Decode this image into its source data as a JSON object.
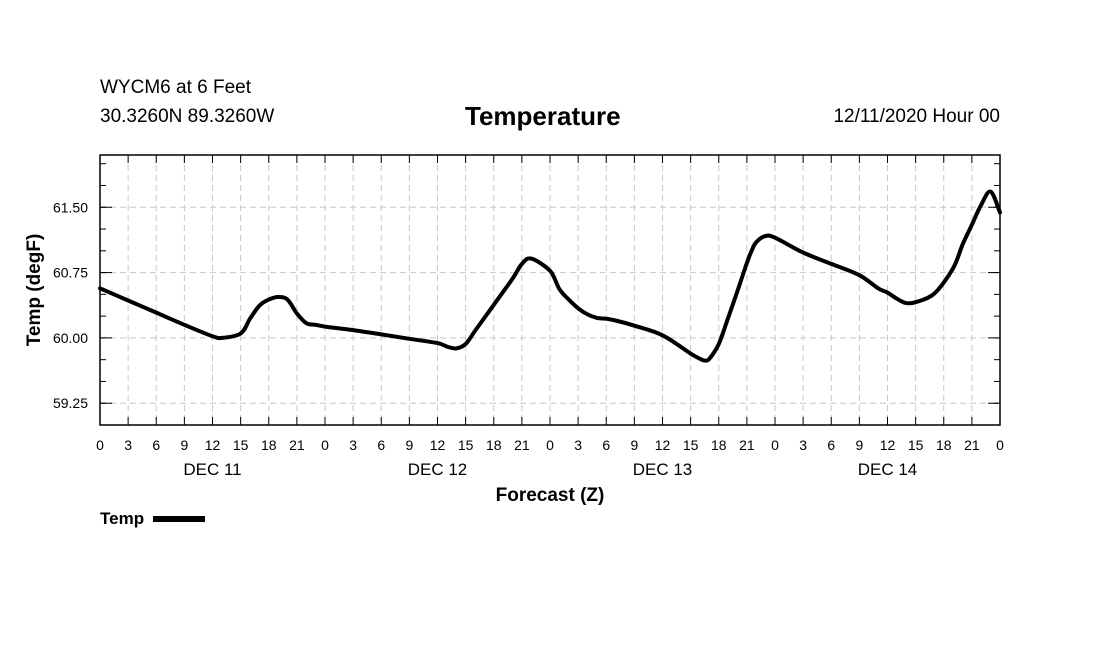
{
  "header": {
    "station": "WYCM6 at 6 Feet",
    "coordinates": "30.3260N 89.3260W",
    "stamp": "12/11/2020 Hour 00"
  },
  "chart_data": {
    "type": "line",
    "title": "Temperature",
    "xlabel": "Forecast (Z)",
    "ylabel": "Temp (degF)",
    "xlim": [
      0,
      96
    ],
    "ylim": [
      59.0,
      62.1
    ],
    "grid": true,
    "x_tick_step_hours": 3,
    "x_tick_labels": [
      "0",
      "3",
      "6",
      "9",
      "12",
      "15",
      "18",
      "21",
      "0",
      "3",
      "6",
      "9",
      "12",
      "15",
      "18",
      "21",
      "0",
      "3",
      "6",
      "9",
      "12",
      "15",
      "18",
      "21",
      "0",
      "3",
      "6",
      "9",
      "12",
      "15",
      "18",
      "21",
      "0"
    ],
    "day_labels": [
      {
        "label": "DEC 11",
        "hour": 12
      },
      {
        "label": "DEC 12",
        "hour": 36
      },
      {
        "label": "DEC 13",
        "hour": 60
      },
      {
        "label": "DEC 14",
        "hour": 84
      }
    ],
    "y_ticks": [
      59.25,
      60.0,
      60.75,
      61.5
    ],
    "y_tick_labels": [
      "59.25",
      "60.00",
      "60.75",
      "61.50"
    ],
    "legend": {
      "position": "bottom-left",
      "entries": [
        "Temp"
      ]
    },
    "series": [
      {
        "name": "Temp",
        "color": "#000000",
        "x": [
          0,
          3,
          6,
          9,
          12,
          13,
          15,
          16,
          17,
          18,
          19,
          20,
          21,
          22,
          23,
          24,
          27,
          30,
          33,
          36,
          37,
          38,
          39,
          40,
          42,
          44,
          45,
          46,
          48,
          49,
          50,
          51,
          52,
          53,
          54,
          55,
          57,
          60,
          63,
          64,
          64.5,
          65,
          66,
          67,
          68,
          69,
          69.5,
          70,
          71,
          72,
          75,
          78,
          81,
          83,
          84,
          85,
          85.5,
          86,
          87,
          89,
          91,
          92,
          93,
          94,
          95,
          96
        ],
        "y": [
          60.57,
          60.43,
          60.29,
          60.15,
          60.02,
          60.0,
          60.05,
          60.22,
          60.37,
          60.44,
          60.47,
          60.44,
          60.28,
          60.17,
          60.15,
          60.13,
          60.09,
          60.04,
          59.99,
          59.94,
          59.9,
          59.88,
          59.93,
          60.08,
          60.38,
          60.68,
          60.85,
          60.91,
          60.77,
          60.56,
          60.44,
          60.34,
          60.27,
          60.23,
          60.22,
          60.2,
          60.14,
          60.03,
          59.82,
          59.76,
          59.74,
          59.76,
          59.93,
          60.23,
          60.54,
          60.86,
          61.0,
          61.1,
          61.17,
          61.15,
          60.98,
          60.85,
          60.72,
          60.57,
          60.52,
          60.45,
          60.42,
          60.4,
          60.41,
          60.51,
          60.8,
          61.07,
          61.3,
          61.53,
          61.68,
          61.44
        ]
      }
    ]
  }
}
